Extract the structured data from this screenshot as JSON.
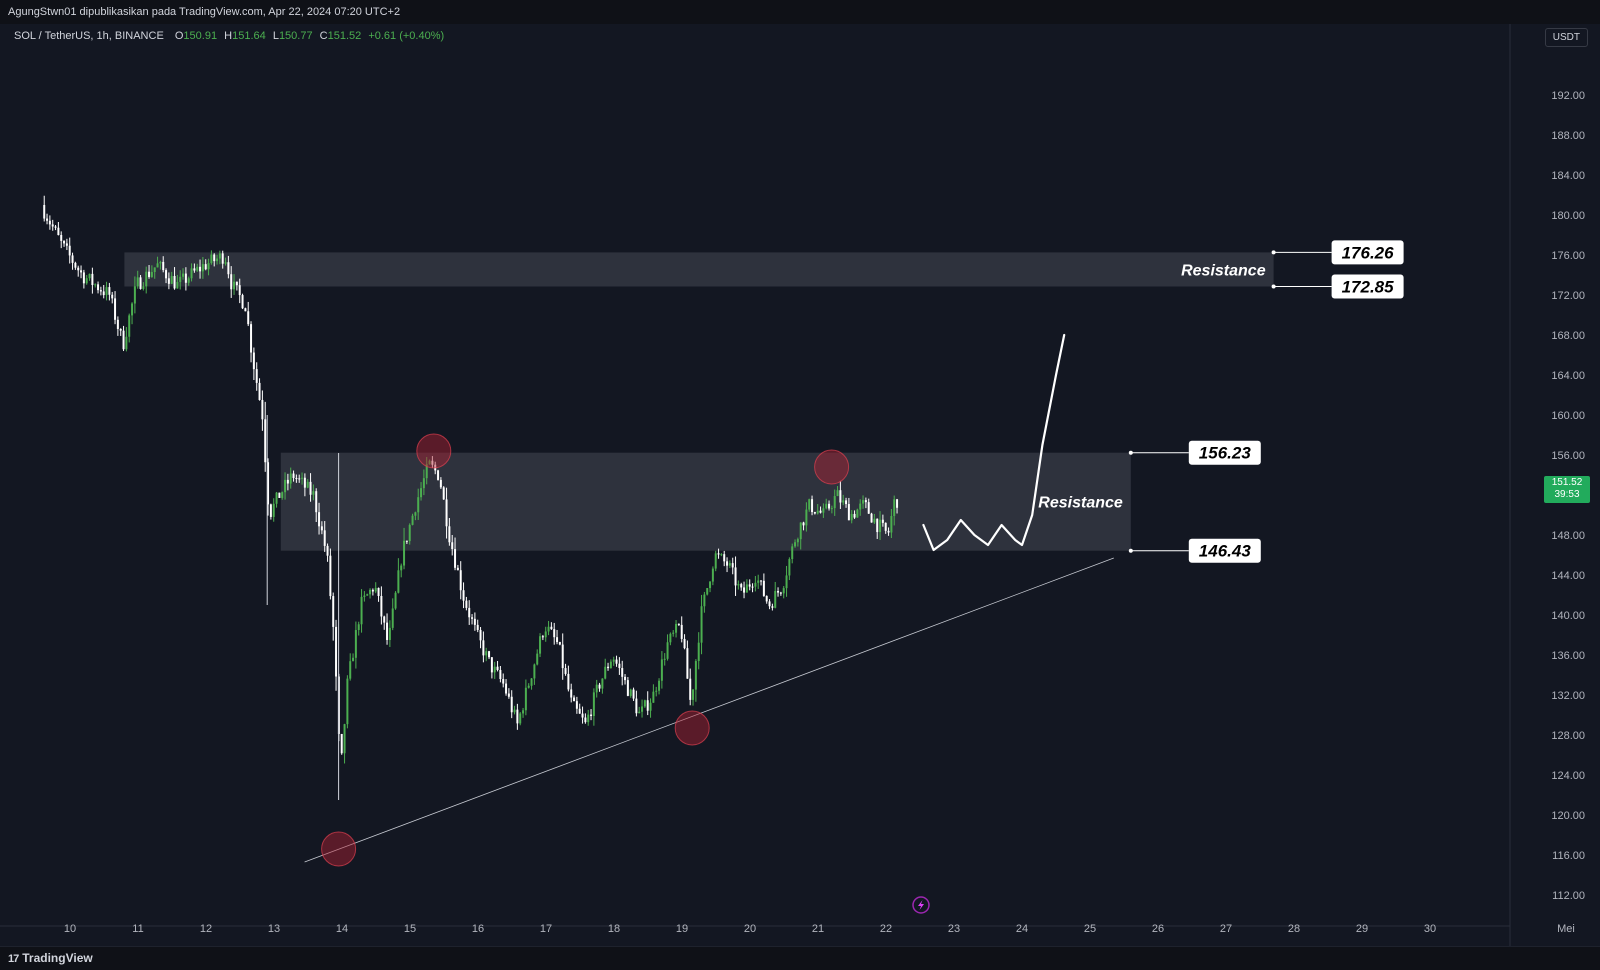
{
  "header": {
    "published": "AgungStwn01 dipublikasikan pada TradingView.com, Apr 22, 2024 07:20 UTC+2"
  },
  "legend": {
    "symbol": "SOL / TetherUS, 1h, BINANCE",
    "open_label": "O",
    "open": "150.91",
    "high_label": "H",
    "high": "151.64",
    "low_label": "L",
    "low": "150.77",
    "close_label": "C",
    "close": "151.52",
    "change": "+0.61 (+0.40%)"
  },
  "currency": "USDT",
  "price_tag": {
    "price": "151.52",
    "countdown": "39:53"
  },
  "footer": {
    "brand": "TradingView",
    "brand_mark": "17"
  },
  "colors": {
    "background": "#131722",
    "up": "#4caf50",
    "down": "#ffffff",
    "zone": "#363a45",
    "marker": "#b22234",
    "price_tag": "#22ab5c"
  },
  "chart_data": {
    "type": "candlestick",
    "timeframe": "1h",
    "x_ticks": [
      "10",
      "11",
      "12",
      "13",
      "14",
      "15",
      "16",
      "17",
      "18",
      "19",
      "20",
      "21",
      "22",
      "23",
      "24",
      "25",
      "26",
      "27",
      "28",
      "29",
      "30",
      "Mei"
    ],
    "y_ticks": [
      "192.00",
      "188.00",
      "184.00",
      "180.00",
      "176.00",
      "172.00",
      "168.00",
      "164.00",
      "160.00",
      "156.00",
      "152.00",
      "148.00",
      "144.00",
      "140.00",
      "136.00",
      "132.00",
      "128.00",
      "124.00",
      "120.00",
      "116.00",
      "112.00"
    ],
    "ylim": [
      109,
      195
    ],
    "price_path": [
      [
        9.6,
        181
      ],
      [
        9.9,
        177
      ],
      [
        10.2,
        174
      ],
      [
        10.6,
        172
      ],
      [
        10.8,
        167
      ],
      [
        11.0,
        173
      ],
      [
        11.3,
        175
      ],
      [
        11.6,
        173
      ],
      [
        12.0,
        175
      ],
      [
        12.3,
        176
      ],
      [
        12.4,
        173
      ],
      [
        12.6,
        171
      ],
      [
        12.7,
        166
      ],
      [
        12.85,
        160
      ],
      [
        12.95,
        150
      ],
      [
        13.1,
        152
      ],
      [
        13.3,
        154
      ],
      [
        13.6,
        152
      ],
      [
        13.8,
        146
      ],
      [
        13.9,
        138
      ],
      [
        14.0,
        124
      ],
      [
        14.1,
        133
      ],
      [
        14.3,
        141
      ],
      [
        14.5,
        143
      ],
      [
        14.7,
        137
      ],
      [
        14.9,
        146
      ],
      [
        15.1,
        151
      ],
      [
        15.3,
        155
      ],
      [
        15.45,
        154
      ],
      [
        15.6,
        148
      ],
      [
        15.8,
        142
      ],
      [
        16.0,
        138
      ],
      [
        16.2,
        135
      ],
      [
        16.4,
        133
      ],
      [
        16.6,
        129
      ],
      [
        16.8,
        134
      ],
      [
        17.0,
        139
      ],
      [
        17.2,
        137
      ],
      [
        17.4,
        131
      ],
      [
        17.6,
        129
      ],
      [
        17.8,
        133
      ],
      [
        18.0,
        136
      ],
      [
        18.2,
        133
      ],
      [
        18.4,
        130
      ],
      [
        18.6,
        132
      ],
      [
        18.8,
        137
      ],
      [
        19.0,
        139
      ],
      [
        19.15,
        131
      ],
      [
        19.3,
        140
      ],
      [
        19.5,
        146
      ],
      [
        19.7,
        145
      ],
      [
        19.9,
        142
      ],
      [
        20.1,
        144
      ],
      [
        20.3,
        141
      ],
      [
        20.5,
        143
      ],
      [
        20.7,
        148
      ],
      [
        20.9,
        151
      ],
      [
        21.1,
        150
      ],
      [
        21.3,
        152
      ],
      [
        21.5,
        150
      ],
      [
        21.7,
        151
      ],
      [
        21.9,
        149
      ],
      [
        22.05,
        148
      ],
      [
        22.15,
        151.5
      ]
    ],
    "annotations": {
      "zones": [
        {
          "label": "Resistance",
          "top": 176.26,
          "bottom": 172.85,
          "x_start": 10.8,
          "x_end": 27.7,
          "top_label": "176.26",
          "bottom_label": "172.85"
        },
        {
          "label": "Resistance",
          "top": 156.23,
          "bottom": 146.43,
          "x_start": 13.1,
          "x_end": 25.6,
          "top_label": "156.23",
          "bottom_label": "146.43"
        }
      ],
      "trendline": {
        "from": [
          13.45,
          115.3
        ],
        "to": [
          25.35,
          145.7
        ]
      },
      "markers": [
        {
          "x": 13.95,
          "y": 116.6
        },
        {
          "x": 15.35,
          "y": 156.4
        },
        {
          "x": 19.15,
          "y": 128.7
        },
        {
          "x": 21.2,
          "y": 154.8
        }
      ],
      "projection": [
        [
          22.55,
          149
        ],
        [
          22.7,
          146.5
        ],
        [
          22.9,
          147.5
        ],
        [
          23.1,
          149.5
        ],
        [
          23.3,
          148
        ],
        [
          23.5,
          147
        ],
        [
          23.7,
          149
        ],
        [
          23.9,
          147.5
        ],
        [
          24.0,
          147
        ],
        [
          24.15,
          150
        ],
        [
          24.3,
          157
        ],
        [
          24.5,
          164
        ],
        [
          24.62,
          168
        ]
      ]
    }
  }
}
